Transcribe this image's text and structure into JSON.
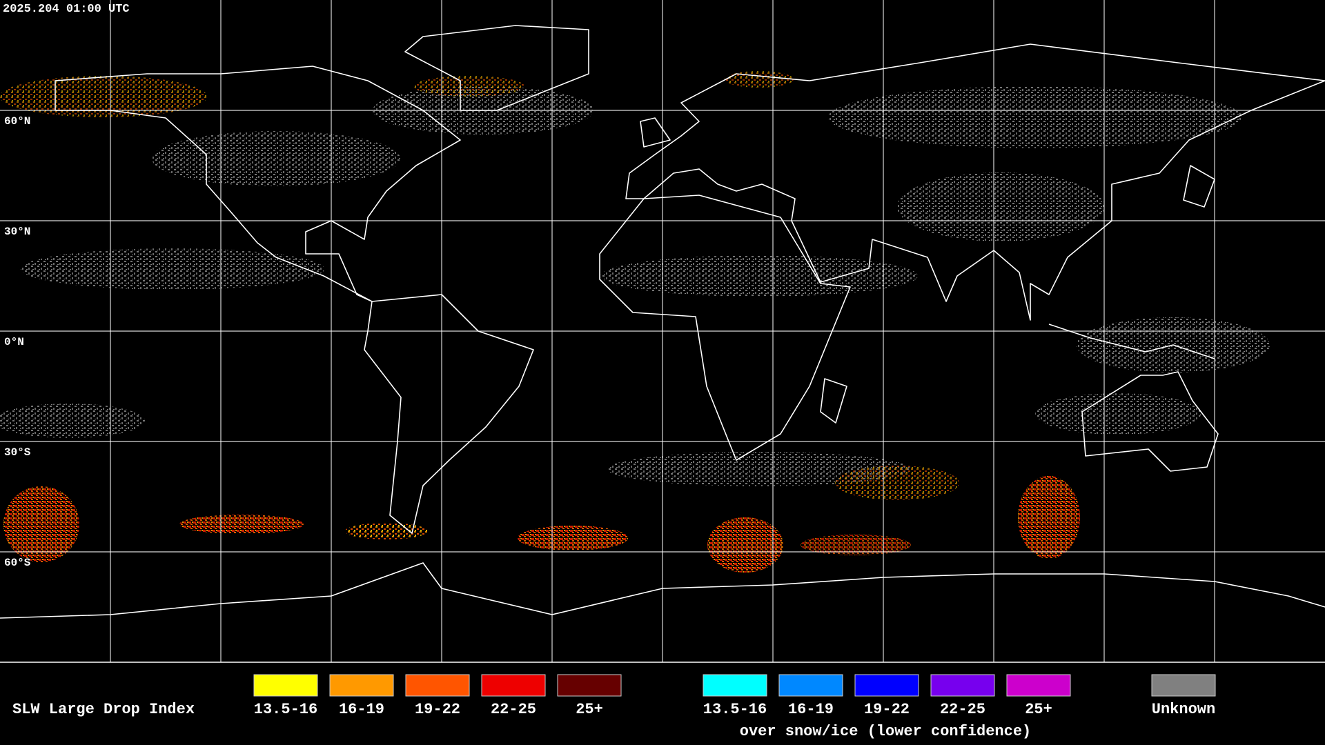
{
  "timestamp": "2025.204 01:00 UTC",
  "latitude_labels": [
    "60°N",
    "30°N",
    "0°N",
    "30°S",
    "60°S"
  ],
  "legend": {
    "title": "SLW Large Drop Index",
    "items": [
      {
        "label": "13.5-16",
        "color": "#ffff00"
      },
      {
        "label": "16-19",
        "color": "#ff9900"
      },
      {
        "label": "19-22",
        "color": "#ff5500"
      },
      {
        "label": "22-25",
        "color": "#ee0000"
      },
      {
        "label": "25+",
        "color": "#660000"
      }
    ],
    "snow_ice_items": [
      {
        "label": "13.5-16",
        "color": "#00ffff"
      },
      {
        "label": "16-19",
        "color": "#0088ff"
      },
      {
        "label": "19-22",
        "color": "#0000ff"
      },
      {
        "label": "22-25",
        "color": "#7700ee"
      },
      {
        "label": "25+",
        "color": "#cc00cc"
      }
    ],
    "snow_ice_note": "over snow/ice (lower confidence)",
    "unknown": {
      "label": "Unknown",
      "color": "#808080"
    }
  }
}
